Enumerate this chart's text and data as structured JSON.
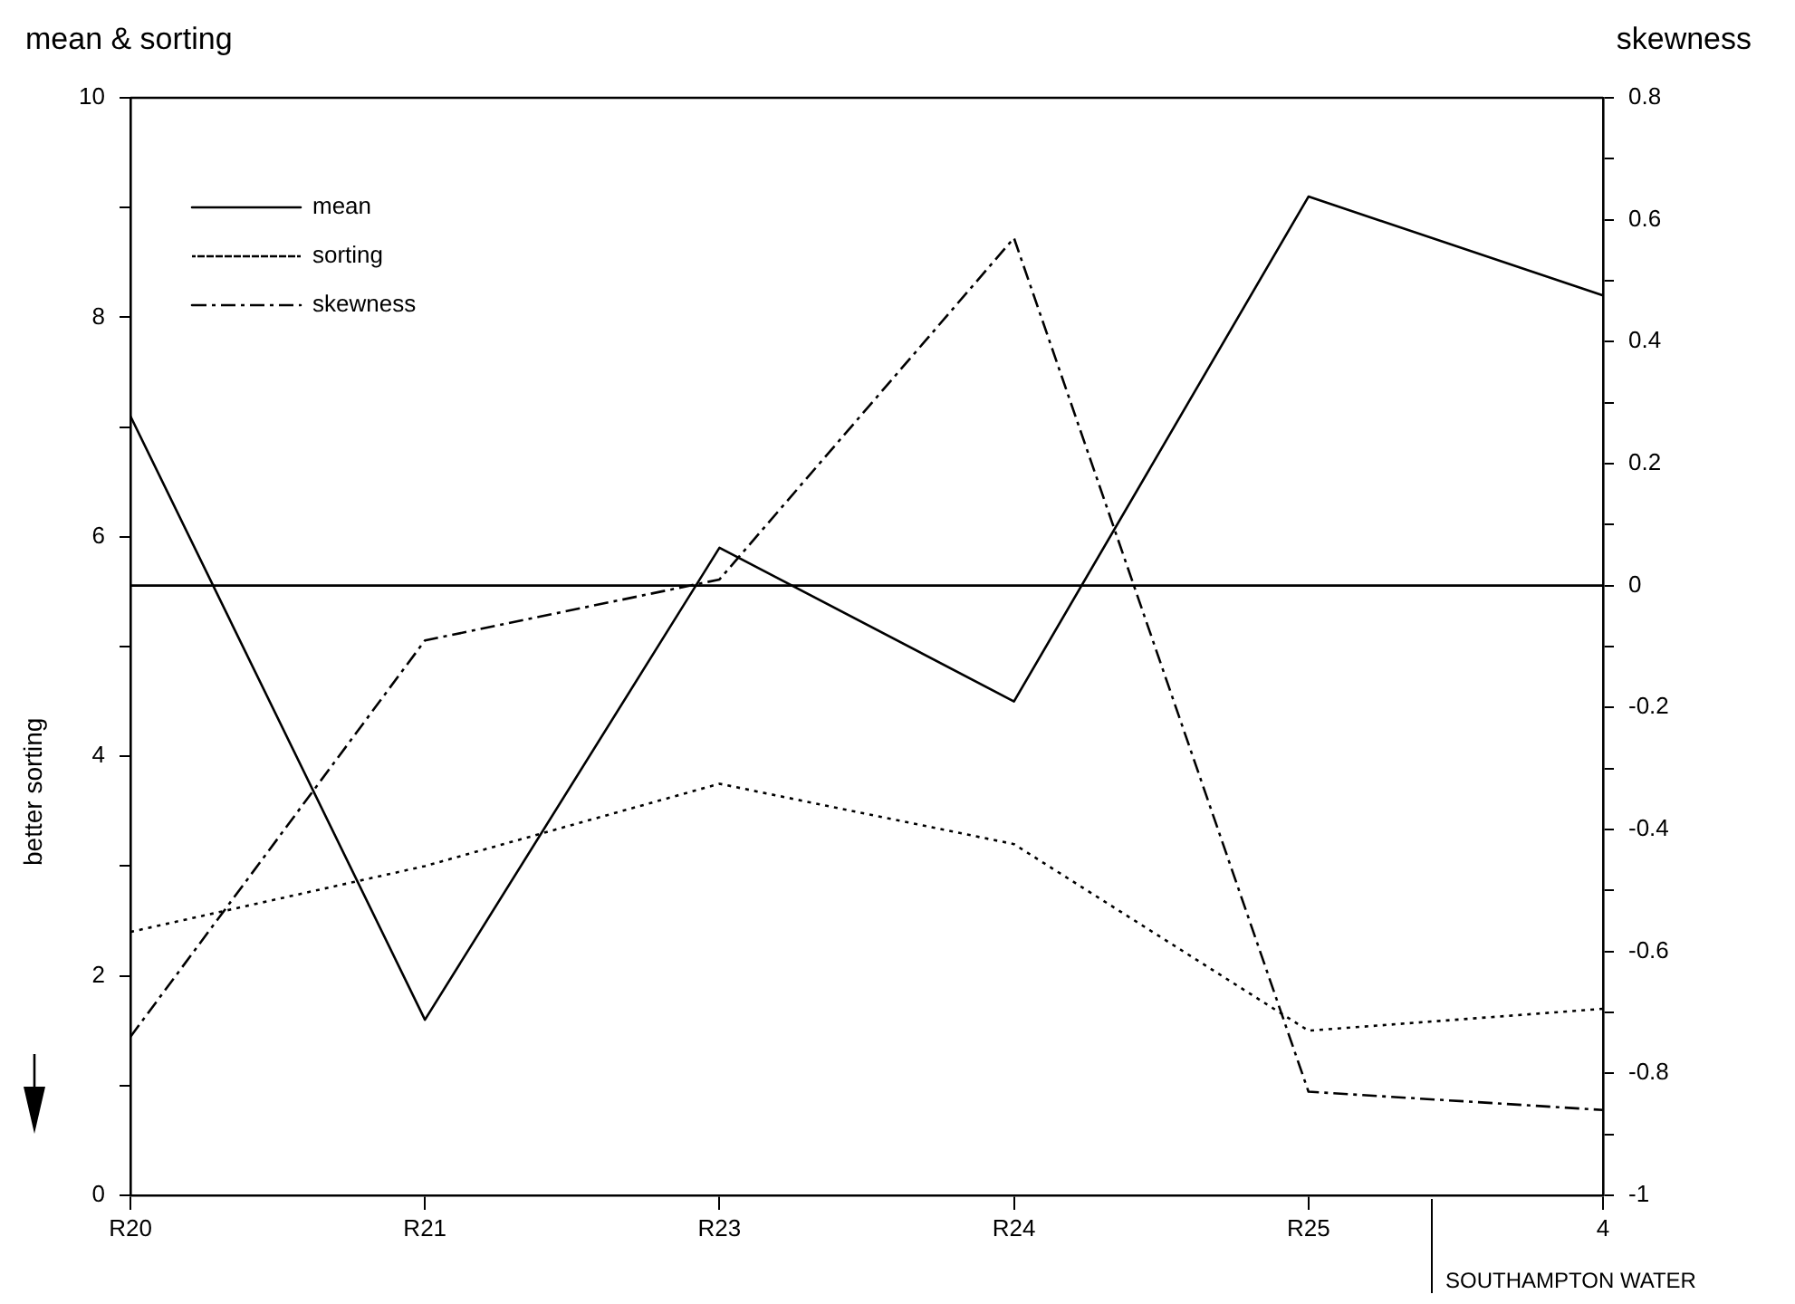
{
  "chart_data": {
    "type": "line",
    "ylabel": "mean & sorting",
    "y2label": "skewness",
    "categories": [
      "R20",
      "R21",
      "R23",
      "R24",
      "R25",
      "4"
    ],
    "series": [
      {
        "name": "mean",
        "color": "#000000",
        "line_style": "solid",
        "values": [
          7.1,
          1.6,
          5.9,
          4.5,
          9.1,
          8.2
        ]
      },
      {
        "name": "sorting",
        "color": "#000000",
        "line_style": "dotted",
        "values": [
          2.4,
          3.0,
          3.75,
          3.2,
          1.5,
          1.7
        ]
      },
      {
        "name": "skewness",
        "color": "#000000",
        "line_style": "dashed",
        "axis": "y2",
        "values": [
          -0.74,
          -0.09,
          0.01,
          0.57,
          -0.83,
          -0.86
        ]
      }
    ],
    "ylim": [
      0,
      10
    ],
    "yticks": [
      0,
      {
        "value": 1,
        "label": null
      },
      2,
      {
        "value": 3,
        "label": null
      },
      4,
      {
        "value": 5,
        "label": null
      },
      6,
      {
        "value": 7,
        "label": null
      },
      8,
      {
        "value": 9,
        "label": null
      },
      10
    ],
    "y2lim": [
      -1,
      0.8
    ],
    "y2ticks": [
      -1,
      {
        "value": -0.9,
        "label": null
      },
      -0.8,
      {
        "value": -0.7,
        "label": null
      },
      -0.6,
      {
        "value": -0.5,
        "label": null
      },
      -0.4,
      {
        "value": -0.3,
        "label": null
      },
      -0.2,
      {
        "value": -0.1,
        "label": null
      },
      0,
      {
        "value": 0.1,
        "label": null
      },
      0.2,
      {
        "value": 0.3,
        "label": null
      },
      0.4,
      {
        "value": 0.5,
        "label": null
      },
      0.6,
      {
        "value": 0.7,
        "label": null
      },
      0.8
    ],
    "ref_lines": [
      {
        "axis": "y2",
        "value": 0,
        "color": "#000000"
      }
    ],
    "annotations": [
      "better sorting",
      "SOUTHAMPTON WATER"
    ],
    "legend": "top left",
    "grid": false,
    "marker": "none"
  }
}
